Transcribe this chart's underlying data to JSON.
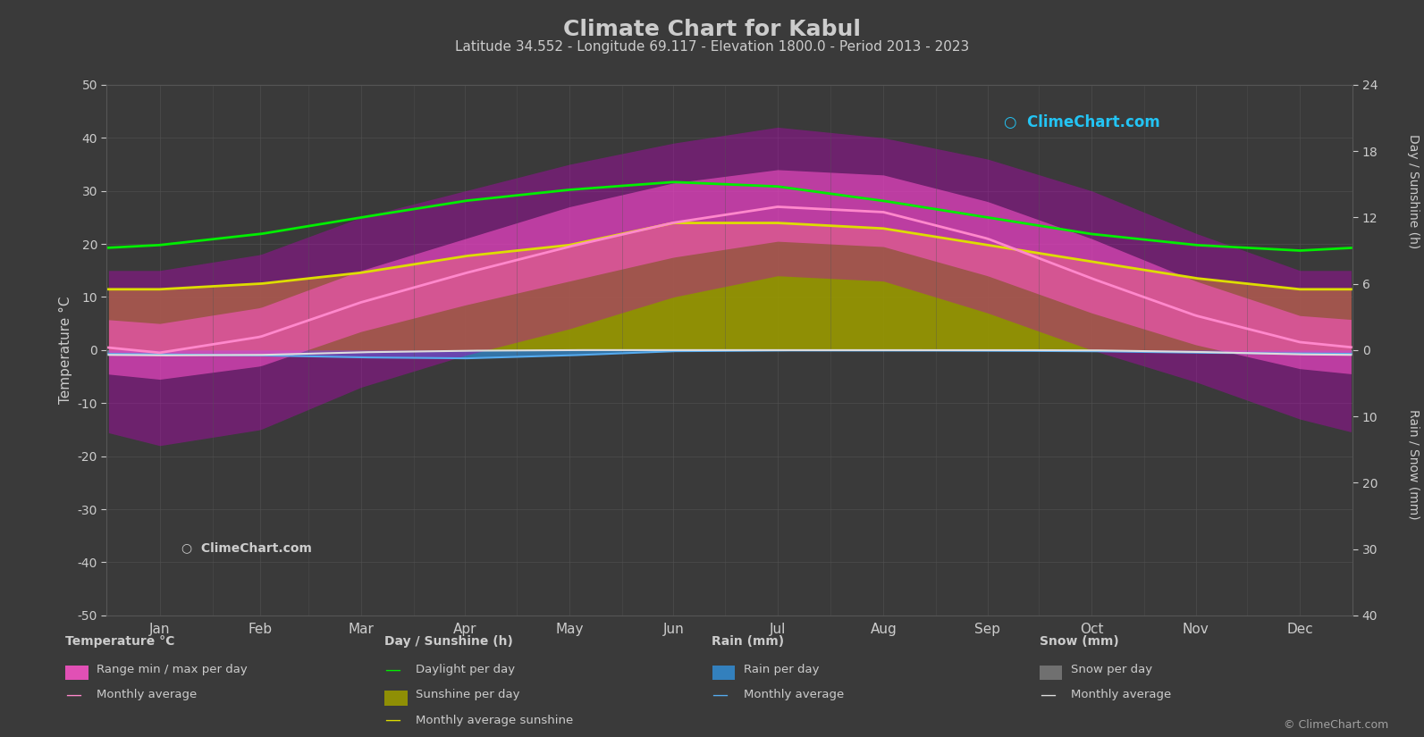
{
  "title": "Climate Chart for Kabul",
  "subtitle": "Latitude 34.552 - Longitude 69.117 - Elevation 1800.0 - Period 2013 - 2023",
  "bg_color": "#3a3a3a",
  "text_color": "#cccccc",
  "grid_color": "#555555",
  "months": [
    "Jan",
    "Feb",
    "Mar",
    "Apr",
    "May",
    "Jun",
    "Jul",
    "Aug",
    "Sep",
    "Oct",
    "Nov",
    "Dec"
  ],
  "temp_min_monthly": [
    -5.5,
    -3.0,
    3.5,
    8.5,
    13.0,
    17.5,
    20.5,
    19.5,
    14.0,
    7.0,
    1.0,
    -3.5
  ],
  "temp_max_monthly": [
    5.0,
    8.0,
    15.0,
    21.0,
    27.0,
    31.5,
    34.0,
    33.0,
    28.0,
    21.0,
    13.0,
    6.5
  ],
  "temp_avg_monthly": [
    -0.5,
    2.5,
    9.0,
    14.5,
    19.5,
    24.0,
    27.0,
    26.0,
    21.0,
    13.5,
    6.5,
    1.5
  ],
  "temp_min_abs_monthly": [
    -18,
    -15,
    -7,
    -1,
    4,
    10,
    14,
    13,
    7,
    0,
    -6,
    -13
  ],
  "temp_max_abs_monthly": [
    15,
    18,
    25,
    30,
    35,
    39,
    42,
    40,
    36,
    30,
    22,
    15
  ],
  "daylight_monthly": [
    9.5,
    10.5,
    12.0,
    13.5,
    14.5,
    15.2,
    14.8,
    13.5,
    12.0,
    10.5,
    9.5,
    9.0
  ],
  "sunshine_monthly": [
    5.5,
    6.0,
    7.0,
    8.5,
    9.5,
    11.5,
    11.5,
    11.0,
    9.5,
    8.0,
    6.5,
    5.5
  ],
  "rain_daily_avg_monthly": [
    0.65,
    0.8,
    1.1,
    1.25,
    0.8,
    0.17,
    0.065,
    0.065,
    0.1,
    0.17,
    0.4,
    0.5
  ],
  "snow_daily_avg_monthly": [
    0.8,
    0.73,
    0.33,
    0.1,
    0.0,
    0.0,
    0.0,
    0.0,
    0.0,
    0.033,
    0.27,
    0.65
  ],
  "ylim_temp": [
    -50,
    50
  ],
  "sun_max": 24,
  "precip_max": 40,
  "sun_ticks": [
    0,
    6,
    12,
    18,
    24
  ],
  "precip_ticks": [
    0,
    10,
    20,
    30,
    40
  ],
  "temp_ticks": [
    -50,
    -40,
    -30,
    -20,
    -10,
    0,
    10,
    20,
    30,
    40,
    50
  ]
}
